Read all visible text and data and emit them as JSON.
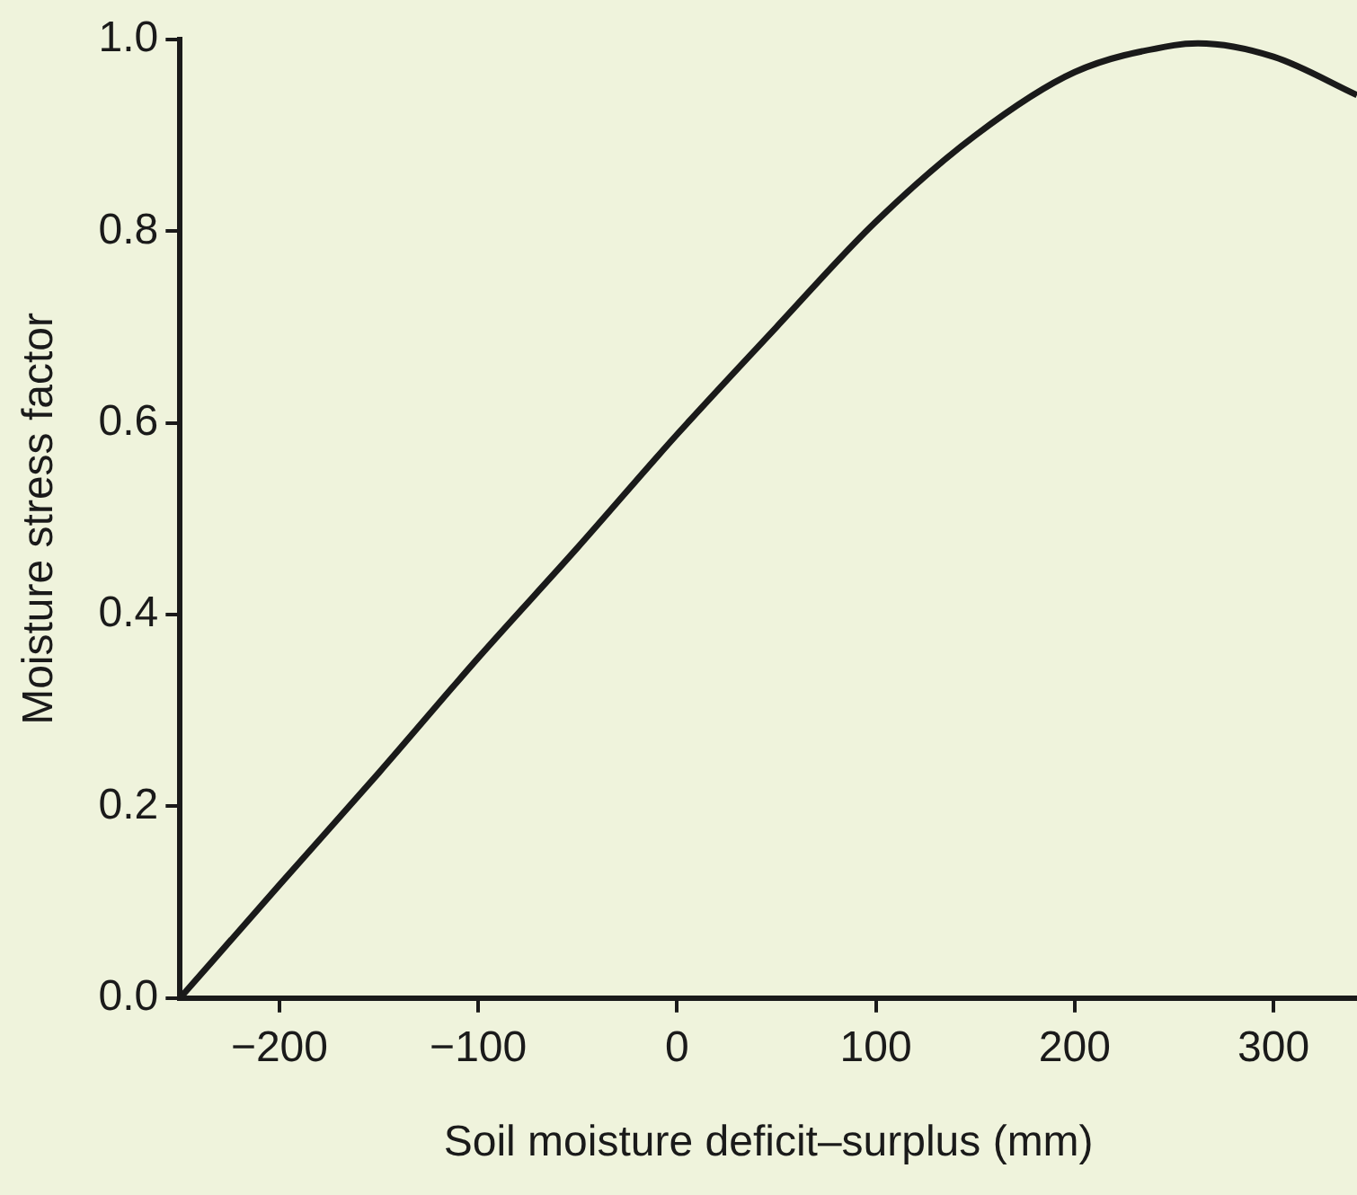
{
  "chart_data": {
    "type": "line",
    "xlabel": "Soil moisture deficit–surplus (mm)",
    "ylabel": "Moisture stress factor",
    "x": [
      -250,
      -200,
      -150,
      -100,
      -50,
      0,
      50,
      100,
      150,
      200,
      250,
      262,
      300,
      342
    ],
    "series": [
      {
        "color": "#1a1a1a",
        "values": [
          0,
          0.118,
          0.235,
          0.355,
          0.47,
          0.588,
          0.7,
          0.81,
          0.9,
          0.966,
          0.994,
          0.996,
          0.982,
          0.942
        ]
      }
    ],
    "xlim": [
      -250,
      342
    ],
    "xticks": [
      -200,
      -100,
      0,
      100,
      200,
      300
    ],
    "ylim": [
      0,
      1
    ],
    "yticks": [
      {
        "value": 0,
        "label": "0.0"
      },
      {
        "value": 0.2,
        "label": "0.2"
      },
      {
        "value": 0.4,
        "label": "0.4"
      },
      {
        "value": 0.6,
        "label": "0.6"
      },
      {
        "value": 0.8,
        "label": "0.8"
      },
      {
        "value": 1,
        "label": "1.0"
      }
    ],
    "grid": false,
    "legend": false,
    "marker": "none",
    "line_style": "solid"
  }
}
